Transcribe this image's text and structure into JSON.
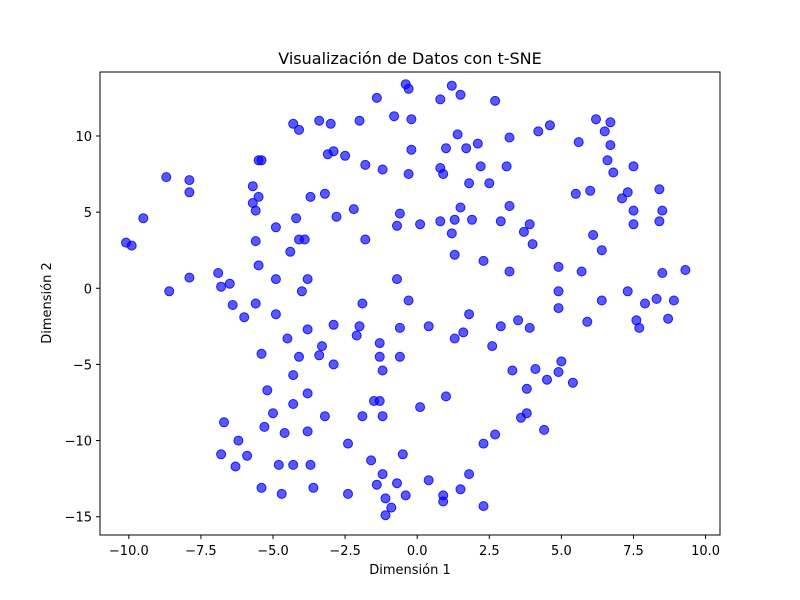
{
  "chart_data": {
    "type": "scatter",
    "title": "Visualización de Datos con t-SNE",
    "xlabel": "Dimensión 1",
    "ylabel": "Dimensión 2",
    "xlim": [
      -11.0,
      10.5
    ],
    "ylim": [
      -16.2,
      14.2
    ],
    "xticks": [
      -10.0,
      -7.5,
      -5.0,
      -2.5,
      0.0,
      2.5,
      5.0,
      7.5,
      10.0
    ],
    "xtick_labels": [
      "−10.0",
      "−7.5",
      "−5.0",
      "−2.5",
      "0.0",
      "2.5",
      "5.0",
      "7.5",
      "10.0"
    ],
    "yticks": [
      -15,
      -10,
      -5,
      0,
      5,
      10
    ],
    "ytick_labels": [
      "−15",
      "−10",
      "−5",
      "0",
      "5",
      "10"
    ],
    "grid": false,
    "marker_color": "#0000ff",
    "marker_alpha": 0.65,
    "points": [
      [
        -10.1,
        3.0
      ],
      [
        -9.9,
        2.8
      ],
      [
        -9.5,
        4.6
      ],
      [
        -8.7,
        7.3
      ],
      [
        -8.6,
        -0.2
      ],
      [
        -7.9,
        7.1
      ],
      [
        -7.9,
        6.3
      ],
      [
        -7.9,
        0.7
      ],
      [
        -6.9,
        1.0
      ],
      [
        -6.8,
        0.1
      ],
      [
        -6.8,
        -10.9
      ],
      [
        -6.7,
        -8.8
      ],
      [
        -6.5,
        0.3
      ],
      [
        -6.4,
        -1.1
      ],
      [
        -6.3,
        -11.7
      ],
      [
        -6.2,
        -10.0
      ],
      [
        -6.0,
        -1.9
      ],
      [
        -5.9,
        -11.0
      ],
      [
        -5.7,
        6.7
      ],
      [
        -5.7,
        5.6
      ],
      [
        -5.6,
        5.1
      ],
      [
        -5.6,
        3.1
      ],
      [
        -5.6,
        -1.0
      ],
      [
        -5.5,
        8.4
      ],
      [
        -5.5,
        6.0
      ],
      [
        -5.5,
        1.5
      ],
      [
        -5.4,
        8.4
      ],
      [
        -5.4,
        -4.3
      ],
      [
        -5.4,
        -13.1
      ],
      [
        -5.3,
        -9.1
      ],
      [
        -5.2,
        -6.7
      ],
      [
        -5.0,
        -8.2
      ],
      [
        -4.9,
        -1.7
      ],
      [
        -4.9,
        0.6
      ],
      [
        -4.9,
        4.0
      ],
      [
        -4.8,
        -11.6
      ],
      [
        -4.7,
        -13.5
      ],
      [
        -4.6,
        -9.5
      ],
      [
        -4.5,
        -3.3
      ],
      [
        -4.4,
        2.4
      ],
      [
        -4.3,
        10.8
      ],
      [
        -4.3,
        -5.7
      ],
      [
        -4.3,
        -7.6
      ],
      [
        -4.3,
        -11.6
      ],
      [
        -4.2,
        4.6
      ],
      [
        -4.1,
        10.4
      ],
      [
        -4.1,
        3.2
      ],
      [
        -4.1,
        -4.5
      ],
      [
        -4.0,
        -0.2
      ],
      [
        -3.9,
        3.2
      ],
      [
        -3.8,
        0.6
      ],
      [
        -3.8,
        -2.7
      ],
      [
        -3.8,
        -9.4
      ],
      [
        -3.8,
        -6.9
      ],
      [
        -3.7,
        6.0
      ],
      [
        -3.7,
        -11.6
      ],
      [
        -3.6,
        -13.1
      ],
      [
        -3.4,
        11.0
      ],
      [
        -3.4,
        -4.4
      ],
      [
        -3.3,
        -3.8
      ],
      [
        -3.2,
        6.2
      ],
      [
        -3.2,
        -8.4
      ],
      [
        -3.1,
        8.8
      ],
      [
        -3.0,
        10.8
      ],
      [
        -2.9,
        9.0
      ],
      [
        -2.9,
        -2.4
      ],
      [
        -2.9,
        -5.0
      ],
      [
        -2.8,
        4.7
      ],
      [
        -2.5,
        8.7
      ],
      [
        -2.4,
        -13.5
      ],
      [
        -2.4,
        -10.2
      ],
      [
        -2.2,
        5.2
      ],
      [
        -2.1,
        -3.1
      ],
      [
        -2.0,
        11.0
      ],
      [
        -2.0,
        -2.5
      ],
      [
        -1.9,
        -8.4
      ],
      [
        -1.9,
        -1.0
      ],
      [
        -1.8,
        3.2
      ],
      [
        -1.8,
        8.1
      ],
      [
        -1.6,
        -11.3
      ],
      [
        -1.5,
        -7.4
      ],
      [
        -1.4,
        12.5
      ],
      [
        -1.4,
        -12.9
      ],
      [
        -1.3,
        -3.6
      ],
      [
        -1.3,
        -4.5
      ],
      [
        -1.3,
        -7.4
      ],
      [
        -1.2,
        -5.4
      ],
      [
        -1.2,
        -8.4
      ],
      [
        -1.2,
        -12.2
      ],
      [
        -1.2,
        7.8
      ],
      [
        -1.1,
        -13.8
      ],
      [
        -1.1,
        -14.9
      ],
      [
        -0.9,
        -14.4
      ],
      [
        -0.8,
        11.3
      ],
      [
        -0.7,
        0.6
      ],
      [
        -0.7,
        4.1
      ],
      [
        -0.7,
        -12.8
      ],
      [
        -0.6,
        4.9
      ],
      [
        -0.6,
        -2.6
      ],
      [
        -0.6,
        -4.5
      ],
      [
        -0.5,
        -10.9
      ],
      [
        -0.4,
        13.4
      ],
      [
        -0.4,
        -13.6
      ],
      [
        -0.3,
        13.1
      ],
      [
        -0.3,
        7.5
      ],
      [
        -0.3,
        -0.8
      ],
      [
        -0.2,
        11.1
      ],
      [
        -0.2,
        9.1
      ],
      [
        0.1,
        4.2
      ],
      [
        0.1,
        -7.8
      ],
      [
        0.4,
        -12.6
      ],
      [
        0.4,
        -2.5
      ],
      [
        0.8,
        12.4
      ],
      [
        0.8,
        7.9
      ],
      [
        0.8,
        4.4
      ],
      [
        0.9,
        7.5
      ],
      [
        0.9,
        -13.6
      ],
      [
        0.9,
        -14.0
      ],
      [
        1.0,
        9.2
      ],
      [
        1.0,
        -7.1
      ],
      [
        1.2,
        13.3
      ],
      [
        1.2,
        3.6
      ],
      [
        1.3,
        4.5
      ],
      [
        1.3,
        2.2
      ],
      [
        1.3,
        -3.3
      ],
      [
        1.4,
        10.1
      ],
      [
        1.5,
        12.7
      ],
      [
        1.5,
        5.3
      ],
      [
        1.5,
        -13.2
      ],
      [
        1.6,
        -2.9
      ],
      [
        1.7,
        9.2
      ],
      [
        1.8,
        6.9
      ],
      [
        1.8,
        -1.7
      ],
      [
        1.8,
        -12.2
      ],
      [
        1.9,
        4.5
      ],
      [
        2.1,
        9.5
      ],
      [
        2.2,
        8.0
      ],
      [
        2.3,
        1.8
      ],
      [
        2.3,
        -10.2
      ],
      [
        2.3,
        -14.3
      ],
      [
        2.5,
        6.9
      ],
      [
        2.6,
        -3.8
      ],
      [
        2.7,
        12.3
      ],
      [
        2.7,
        -9.6
      ],
      [
        2.9,
        4.4
      ],
      [
        2.9,
        -2.5
      ],
      [
        3.1,
        8.0
      ],
      [
        3.2,
        9.9
      ],
      [
        3.2,
        5.4
      ],
      [
        3.2,
        1.1
      ],
      [
        3.3,
        -5.4
      ],
      [
        3.5,
        -2.1
      ],
      [
        3.6,
        -8.5
      ],
      [
        3.7,
        3.7
      ],
      [
        3.8,
        -6.6
      ],
      [
        3.8,
        -8.2
      ],
      [
        3.9,
        4.2
      ],
      [
        3.9,
        -2.6
      ],
      [
        4.0,
        2.9
      ],
      [
        4.1,
        -5.3
      ],
      [
        4.2,
        10.3
      ],
      [
        4.4,
        -9.3
      ],
      [
        4.5,
        -6.0
      ],
      [
        4.6,
        10.7
      ],
      [
        4.9,
        1.4
      ],
      [
        4.9,
        -0.2
      ],
      [
        4.9,
        -1.3
      ],
      [
        4.9,
        -5.5
      ],
      [
        5.0,
        -4.8
      ],
      [
        5.4,
        -6.2
      ],
      [
        5.5,
        6.2
      ],
      [
        5.6,
        9.6
      ],
      [
        5.7,
        1.1
      ],
      [
        5.9,
        -2.2
      ],
      [
        6.0,
        6.4
      ],
      [
        6.1,
        3.5
      ],
      [
        6.2,
        11.1
      ],
      [
        6.4,
        -0.8
      ],
      [
        6.4,
        2.5
      ],
      [
        6.5,
        10.3
      ],
      [
        6.6,
        8.4
      ],
      [
        6.7,
        10.9
      ],
      [
        6.7,
        9.4
      ],
      [
        6.8,
        7.6
      ],
      [
        7.1,
        5.9
      ],
      [
        7.3,
        6.3
      ],
      [
        7.3,
        -0.2
      ],
      [
        7.5,
        8.0
      ],
      [
        7.5,
        5.1
      ],
      [
        7.5,
        4.2
      ],
      [
        7.6,
        -2.1
      ],
      [
        7.7,
        -2.6
      ],
      [
        7.9,
        -1.0
      ],
      [
        8.3,
        -0.7
      ],
      [
        8.4,
        6.5
      ],
      [
        8.4,
        4.4
      ],
      [
        8.5,
        5.1
      ],
      [
        8.5,
        1.0
      ],
      [
        8.7,
        -2.0
      ],
      [
        8.9,
        -0.8
      ],
      [
        9.3,
        1.2
      ]
    ]
  }
}
